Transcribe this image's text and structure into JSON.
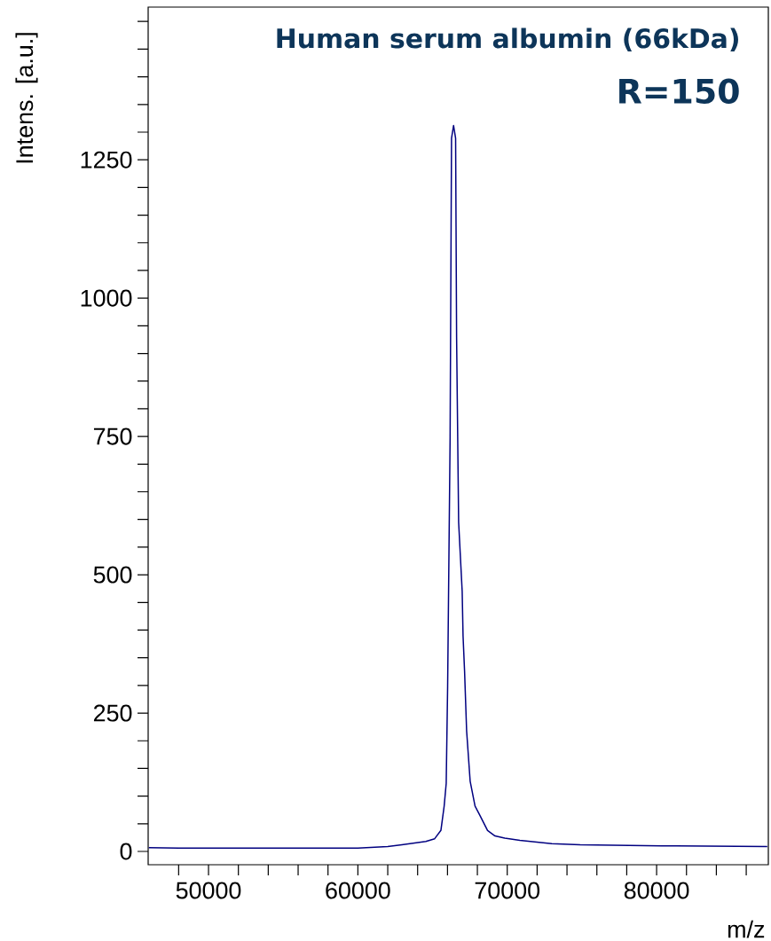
{
  "chart_data": {
    "type": "line",
    "title": "Human serum albumin (66kDa)",
    "subtitle": "R=150",
    "xlabel": "m/z",
    "ylabel": "Intens. [a.u.]",
    "x": [
      46000,
      48000,
      55000,
      60000,
      61995,
      62945,
      64548,
      65142,
      65558,
      65777,
      65914,
      66009,
      66175,
      66270,
      66407,
      66543,
      66609,
      66745,
      66983,
      67042,
      67143,
      67280,
      67517,
      67844,
      68170,
      68681,
      69180,
      69833,
      70843,
      72981,
      74881,
      80344,
      87409
    ],
    "values": [
      7,
      6,
      6,
      6,
      9,
      12,
      18,
      23,
      38,
      82,
      123,
      299,
      749,
      1289,
      1312,
      1289,
      929,
      595,
      470,
      389,
      326,
      218,
      127,
      82,
      65,
      38,
      28,
      24,
      20,
      14,
      12,
      10,
      9
    ],
    "color": "#000080",
    "xlim": [
      45960,
      87480
    ],
    "ylim": [
      -24,
      1526
    ],
    "xticks": [
      {
        "value": 48000,
        "label": null
      },
      50000,
      {
        "value": 52000,
        "label": null
      },
      {
        "value": 54000,
        "label": null
      },
      {
        "value": 56000,
        "label": null
      },
      {
        "value": 58000,
        "label": null
      },
      60000,
      {
        "value": 62000,
        "label": null
      },
      {
        "value": 64000,
        "label": null
      },
      {
        "value": 66000,
        "label": null
      },
      {
        "value": 68000,
        "label": null
      },
      70000,
      {
        "value": 72000,
        "label": null
      },
      {
        "value": 74000,
        "label": null
      },
      {
        "value": 76000,
        "label": null
      },
      {
        "value": 78000,
        "label": null
      },
      80000,
      {
        "value": 82000,
        "label": null
      },
      {
        "value": 84000,
        "label": null
      },
      {
        "value": 86000,
        "label": null
      }
    ],
    "yticks": [
      0,
      {
        "value": 50,
        "label": null
      },
      {
        "value": 100,
        "label": null
      },
      {
        "value": 150,
        "label": null
      },
      {
        "value": 200,
        "label": null
      },
      250,
      {
        "value": 300,
        "label": null
      },
      {
        "value": 350,
        "label": null
      },
      {
        "value": 400,
        "label": null
      },
      {
        "value": 450,
        "label": null
      },
      500,
      {
        "value": 550,
        "label": null
      },
      {
        "value": 600,
        "label": null
      },
      {
        "value": 650,
        "label": null
      },
      {
        "value": 700,
        "label": null
      },
      750,
      {
        "value": 800,
        "label": null
      },
      {
        "value": 850,
        "label": null
      },
      {
        "value": 900,
        "label": null
      },
      {
        "value": 950,
        "label": null
      },
      1000,
      {
        "value": 1050,
        "label": null
      },
      {
        "value": 1100,
        "label": null
      },
      {
        "value": 1150,
        "label": null
      },
      {
        "value": 1200,
        "label": null
      },
      1250,
      {
        "value": 1300,
        "label": null
      },
      {
        "value": 1350,
        "label": null
      },
      {
        "value": 1400,
        "label": null
      },
      {
        "value": 1450,
        "label": null
      },
      {
        "value": 1500,
        "label": null
      }
    ]
  }
}
